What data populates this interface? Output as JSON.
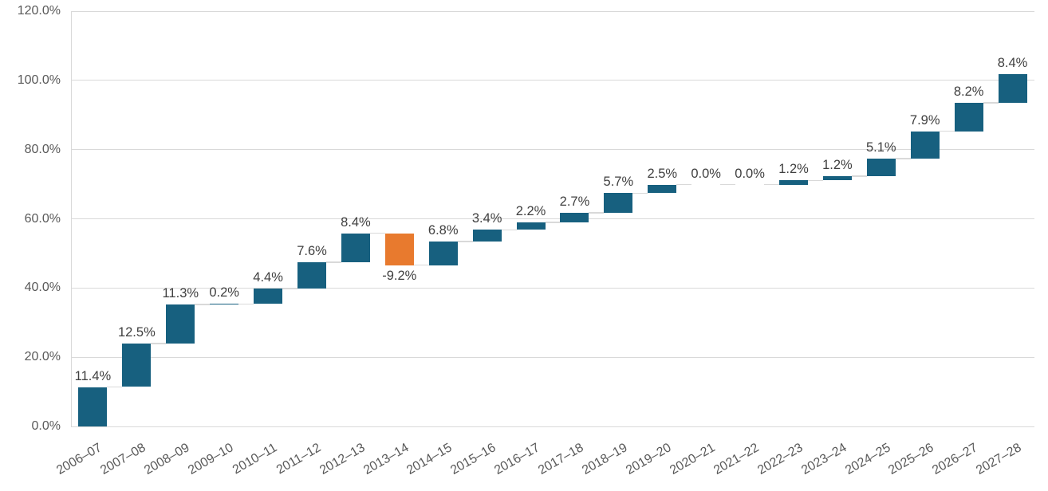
{
  "chart_data": {
    "type": "bar",
    "subtype": "waterfall",
    "title": "",
    "xlabel": "",
    "ylabel": "",
    "grid": true,
    "legend": null,
    "categories": [
      "2006–07",
      "2007–08",
      "2008–09",
      "2009–10",
      "2010–11",
      "2011–12",
      "2012–13",
      "2013–14",
      "2014–15",
      "2015–16",
      "2016–17",
      "2017–18",
      "2018–19",
      "2019–20",
      "2020–21",
      "2021–22",
      "2022–23",
      "2023–24",
      "2024–25",
      "2025–26",
      "2026–27",
      "2027–28"
    ],
    "values": [
      11.4,
      12.5,
      11.3,
      0.2,
      4.4,
      7.6,
      8.4,
      -9.2,
      6.8,
      3.4,
      2.2,
      2.7,
      5.7,
      2.5,
      0.0,
      0.0,
      1.2,
      1.2,
      5.1,
      7.9,
      8.2,
      8.4
    ],
    "data_labels": [
      "11.4%",
      "12.5%",
      "11.3%",
      "0.2%",
      "4.4%",
      "7.6%",
      "8.4%",
      "-9.2%",
      "6.8%",
      "3.4%",
      "2.2%",
      "2.7%",
      "5.7%",
      "2.5%",
      "0.0%",
      "0.0%",
      "1.2%",
      "1.2%",
      "5.1%",
      "7.9%",
      "8.2%",
      "8.4%"
    ],
    "cumulative_end": [
      11.4,
      23.9,
      35.2,
      35.4,
      39.8,
      47.4,
      55.8,
      46.6,
      53.4,
      56.8,
      59.0,
      61.7,
      67.4,
      69.9,
      69.9,
      69.9,
      71.1,
      72.3,
      77.4,
      85.3,
      93.5,
      101.9
    ],
    "y_axis": {
      "min": 0,
      "max": 120,
      "tick_values": [
        0,
        20,
        40,
        60,
        80,
        100,
        120
      ],
      "tick_labels": [
        "0.0%",
        "20.0%",
        "40.0%",
        "60.0%",
        "80.0%",
        "100.0%",
        "120.0%"
      ]
    },
    "colors": {
      "increase": "#17607F",
      "decrease": "#E87A2E",
      "gridline": "#D9D9D9",
      "connector": "#D9D9D9",
      "axis_tick_label": "#595959",
      "data_label": "#3F3F3F"
    }
  }
}
